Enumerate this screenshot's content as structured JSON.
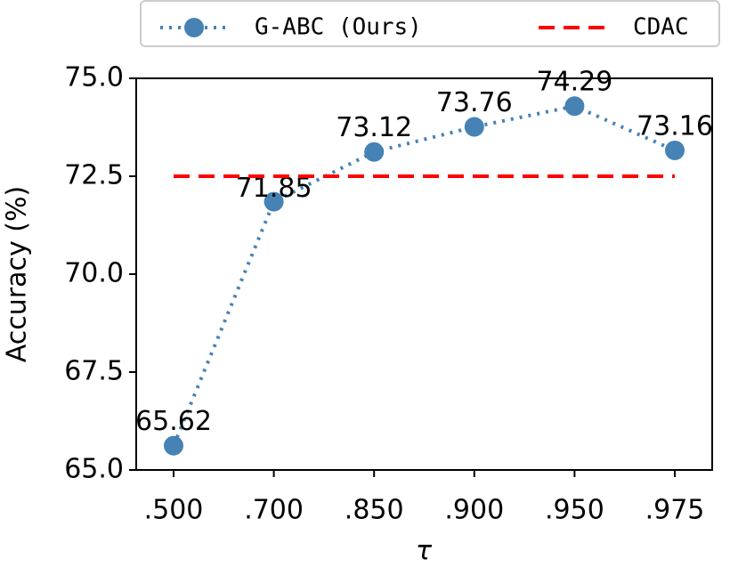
{
  "chart_data": {
    "type": "line",
    "xlabel": "τ",
    "ylabel": "Accuracy (%)",
    "categories": [
      ".500",
      ".700",
      ".850",
      ".900",
      ".950",
      ".975"
    ],
    "series": [
      {
        "name": "G-ABC (Ours)",
        "color": "#4682b4",
        "values": [
          65.62,
          71.85,
          73.12,
          73.76,
          74.29,
          73.16
        ]
      },
      {
        "name": "CDAC",
        "color": "#ff0000",
        "values": [
          72.5,
          72.5,
          72.5,
          72.5,
          72.5,
          72.5
        ]
      }
    ],
    "ylim": [
      65.0,
      75.0
    ],
    "yticks": [
      {
        "value": 65,
        "label": "65.0"
      },
      67.5,
      {
        "value": 70,
        "label": "70.0"
      },
      72.5,
      {
        "value": 75,
        "label": "75.0"
      }
    ],
    "legend": "top"
  }
}
